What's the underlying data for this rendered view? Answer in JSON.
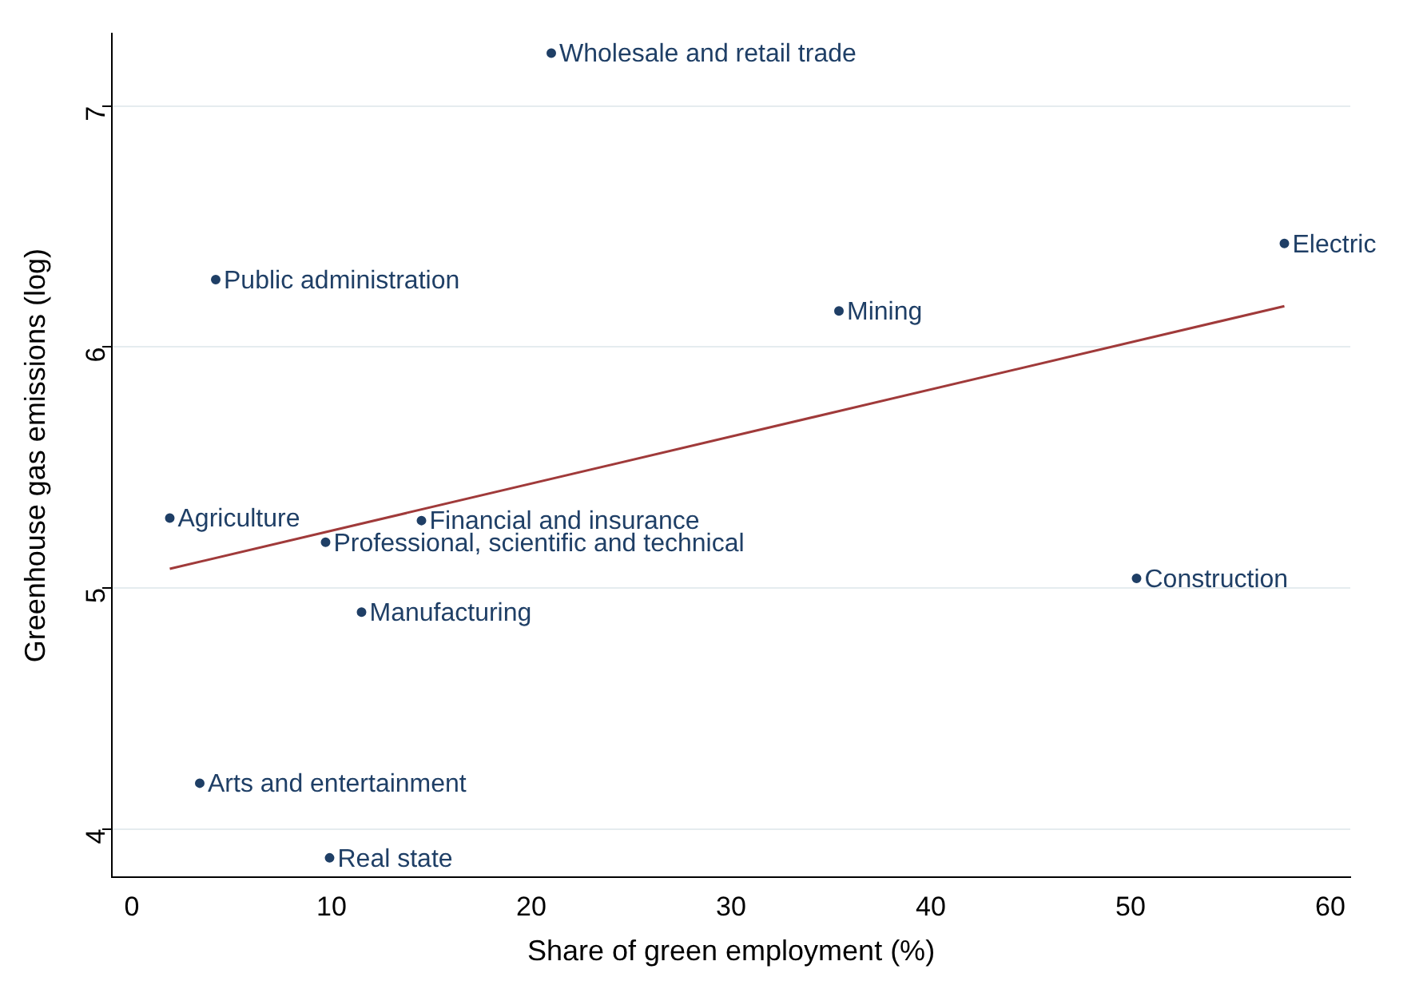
{
  "chart_data": {
    "type": "scatter",
    "xlabel": "Share of green employment (%)",
    "ylabel": "Greenhouse gas emissions (log)",
    "xlim": [
      -1,
      61
    ],
    "xticks": [
      0,
      10,
      20,
      30,
      40,
      50,
      60
    ],
    "ylim": [
      3.8,
      7.3
    ],
    "yticks": [
      4,
      5,
      6,
      7
    ],
    "grid": "y",
    "legend": false,
    "marker": "circle",
    "series": [
      {
        "name": "Wholesale and retail trade",
        "color": "#1f3f66",
        "x": [
          21.0
        ],
        "values": [
          7.22
        ]
      },
      {
        "name": "Electric",
        "color": "#1f3f66",
        "x": [
          57.7
        ],
        "values": [
          6.43
        ]
      },
      {
        "name": "Public administration",
        "color": "#1f3f66",
        "x": [
          4.2
        ],
        "values": [
          6.28
        ]
      },
      {
        "name": "Mining",
        "color": "#1f3f66",
        "x": [
          35.4
        ],
        "values": [
          6.15
        ]
      },
      {
        "name": "Agriculture",
        "color": "#1f3f66",
        "x": [
          1.9
        ],
        "values": [
          5.29
        ]
      },
      {
        "name": "Financial and insurance",
        "color": "#1f3f66",
        "x": [
          14.5
        ],
        "values": [
          5.28
        ]
      },
      {
        "name": "Professional, scientific and technical",
        "color": "#1f3f66",
        "x": [
          9.7
        ],
        "values": [
          5.19
        ]
      },
      {
        "name": "Construction",
        "color": "#1f3f66",
        "x": [
          50.3
        ],
        "values": [
          5.04
        ]
      },
      {
        "name": "Manufacturing",
        "color": "#1f3f66",
        "x": [
          11.5
        ],
        "values": [
          4.9
        ]
      },
      {
        "name": "Arts and entertainment",
        "color": "#1f3f66",
        "x": [
          3.4
        ],
        "values": [
          4.19
        ]
      },
      {
        "name": "Real state",
        "color": "#1f3f66",
        "x": [
          9.9
        ],
        "values": [
          3.88
        ]
      },
      {
        "type": "line",
        "color": "#a03a3a",
        "marker": "none",
        "x": [
          1.9,
          57.7
        ],
        "values": [
          5.08,
          6.17
        ]
      }
    ]
  }
}
